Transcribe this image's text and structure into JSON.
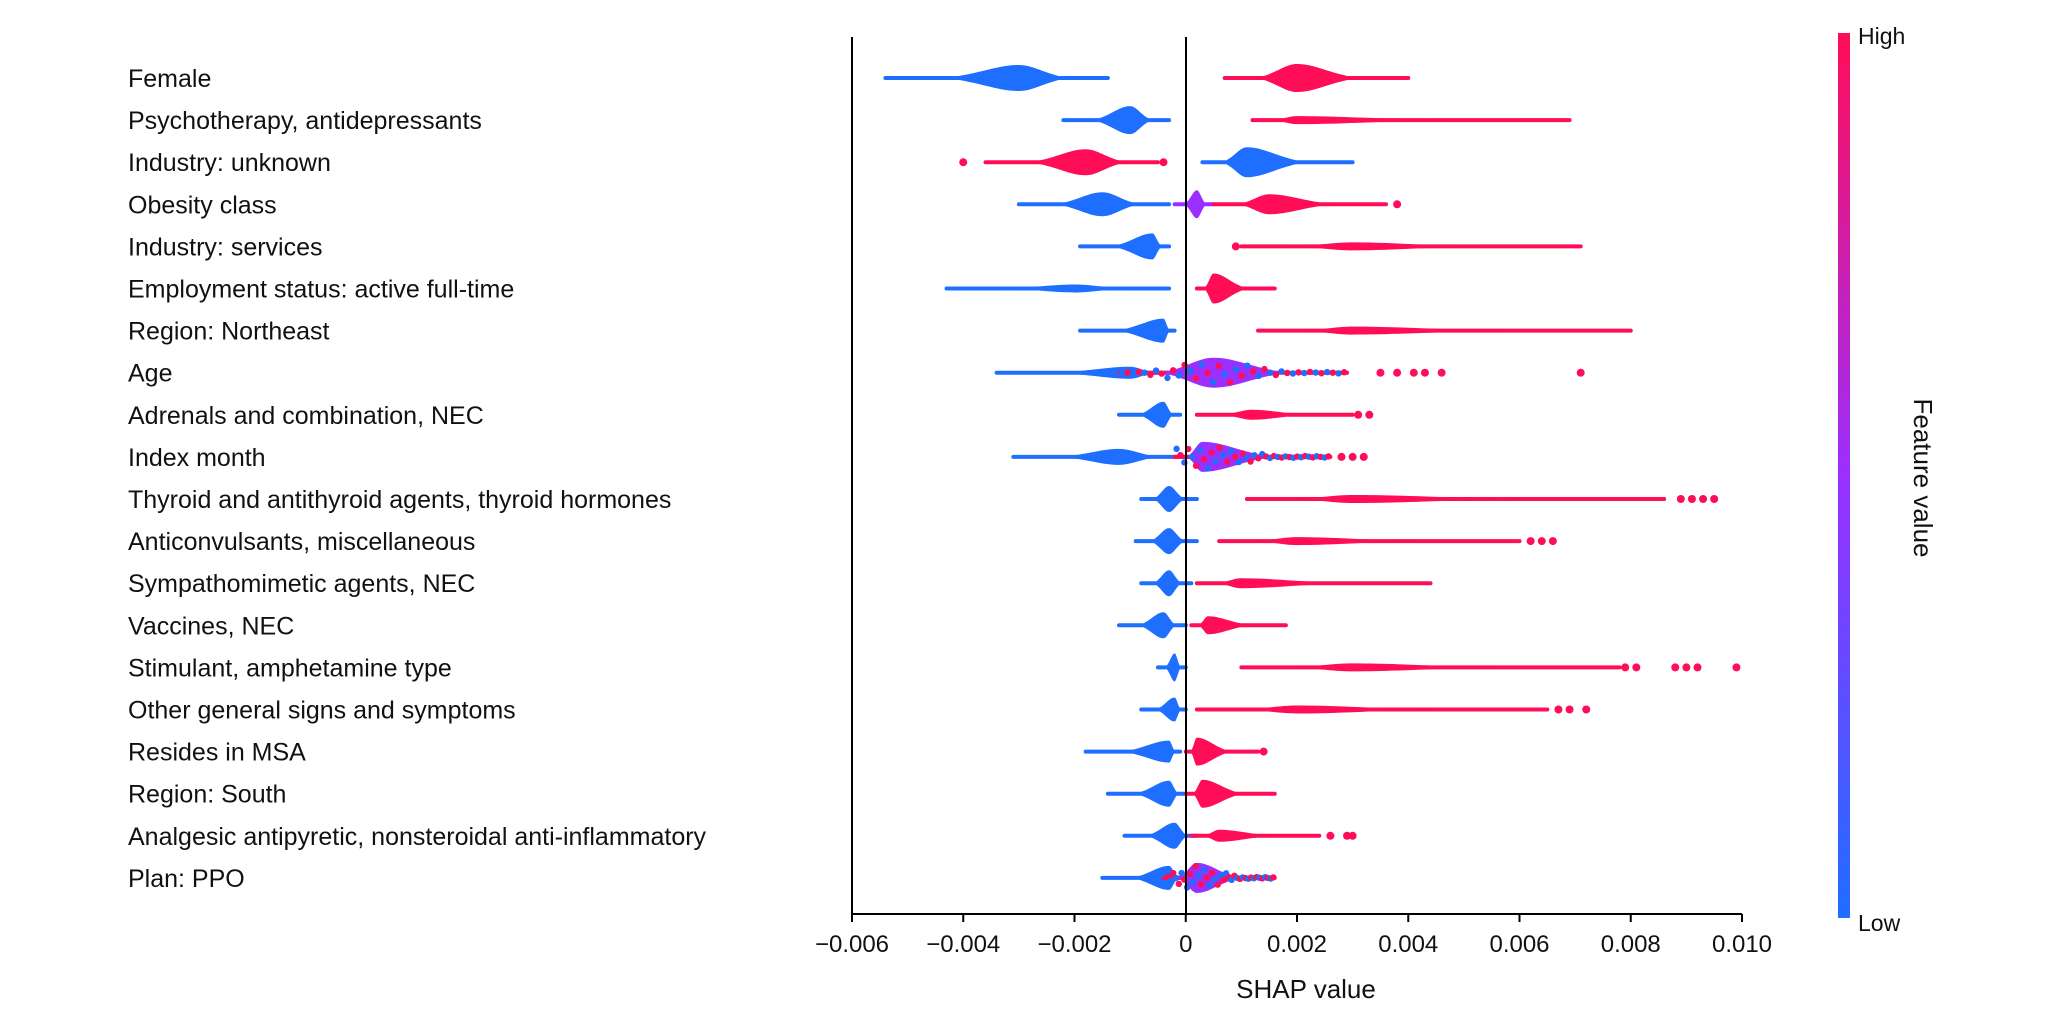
{
  "chart_data": {
    "type": "scatter",
    "subtype": "shap-beeswarm",
    "xlabel": "SHAP value",
    "xlim": [
      -0.006,
      0.01
    ],
    "xticks": [
      -0.006,
      -0.004,
      -0.002,
      0,
      0.002,
      0.004,
      0.006,
      0.008,
      0.01
    ],
    "xtick_labels": [
      "−0.006",
      "−0.004",
      "−0.002",
      "0",
      "0.002",
      "0.004",
      "0.006",
      "0.008",
      "0.010"
    ],
    "colorbar": {
      "title": "Feature value",
      "high_label": "High",
      "low_label": "Low",
      "low_color": "#1E6EFF",
      "mid_color": "#9B2FFF",
      "high_color": "#FF0D57"
    },
    "features": [
      {
        "name": "Female",
        "clusters": [
          {
            "c": "low",
            "min": -0.0054,
            "max": -0.0014,
            "center": -0.003,
            "w": 13
          },
          {
            "c": "high",
            "min": 0.0007,
            "max": 0.004,
            "center": 0.002,
            "w": 14
          }
        ]
      },
      {
        "name": "Psychotherapy, antidepressants",
        "clusters": [
          {
            "c": "low",
            "min": -0.0022,
            "max": -0.0003,
            "center": -0.001,
            "w": 14
          },
          {
            "c": "high",
            "min": 0.0012,
            "max": 0.0069,
            "center": 0.002,
            "w": 4
          }
        ]
      },
      {
        "name": "Industry: unknown",
        "clusters": [
          {
            "c": "high",
            "min": -0.0036,
            "max": -0.0005,
            "center": -0.0018,
            "w": 13,
            "outliers": [
              -0.004,
              -0.0004
            ]
          },
          {
            "c": "low",
            "min": 0.0003,
            "max": 0.003,
            "center": 0.0011,
            "w": 15
          }
        ]
      },
      {
        "name": "Obesity class",
        "clusters": [
          {
            "c": "low",
            "min": -0.003,
            "max": -0.0003,
            "center": -0.0015,
            "w": 12
          },
          {
            "c": "mid",
            "min": -0.0002,
            "max": 0.0005,
            "center": 0.0002,
            "w": 14
          },
          {
            "c": "high",
            "min": 0.0005,
            "max": 0.0036,
            "center": 0.0015,
            "w": 10,
            "outliers": [
              0.0038
            ]
          }
        ]
      },
      {
        "name": "Industry: services",
        "clusters": [
          {
            "c": "low",
            "min": -0.0019,
            "max": -0.0003,
            "center": -0.0006,
            "w": 13
          },
          {
            "c": "high",
            "min": 0.001,
            "max": 0.0071,
            "center": 0.003,
            "w": 4,
            "outliers": [
              0.0009
            ]
          }
        ]
      },
      {
        "name": "Employment status: active full-time",
        "clusters": [
          {
            "c": "low",
            "min": -0.0043,
            "max": -0.0003,
            "center": -0.002,
            "w": 4
          },
          {
            "c": "high",
            "min": 0.0002,
            "max": 0.0016,
            "center": 0.0005,
            "w": 15
          }
        ]
      },
      {
        "name": "Region: Northeast",
        "clusters": [
          {
            "c": "low",
            "min": -0.0019,
            "max": -0.0002,
            "center": -0.0004,
            "w": 12
          },
          {
            "c": "high",
            "min": 0.0013,
            "max": 0.008,
            "center": 0.003,
            "w": 4
          }
        ]
      },
      {
        "name": "Age",
        "clusters": [
          {
            "c": "low",
            "min": -0.0034,
            "max": -0.0002,
            "center": -0.001,
            "w": 6
          },
          {
            "c": "mixed",
            "min": -0.0012,
            "max": 0.0029,
            "center": 0.0005,
            "w": 15,
            "outliers": [
              0.0035,
              0.0038,
              0.0041,
              0.0043,
              0.0046,
              0.0071
            ]
          }
        ]
      },
      {
        "name": "Adrenals and combination, NEC",
        "clusters": [
          {
            "c": "low",
            "min": -0.0012,
            "max": -0.0001,
            "center": -0.0004,
            "w": 13
          },
          {
            "c": "high",
            "min": 0.0002,
            "max": 0.003,
            "center": 0.0012,
            "w": 5,
            "outliers": [
              0.0031,
              0.0033
            ]
          }
        ]
      },
      {
        "name": "Index month",
        "clusters": [
          {
            "c": "low",
            "min": -0.0031,
            "max": 0.0001,
            "center": -0.0012,
            "w": 8
          },
          {
            "c": "mixed",
            "min": -0.0002,
            "max": 0.0026,
            "center": 0.0003,
            "w": 15,
            "outliers": [
              0.0028,
              0.003,
              0.0032
            ]
          }
        ]
      },
      {
        "name": "Thyroid and antithyroid agents, thyroid hormones",
        "clusters": [
          {
            "c": "low",
            "min": -0.0008,
            "max": 0.0002,
            "center": -0.0003,
            "w": 13
          },
          {
            "c": "high",
            "min": 0.0011,
            "max": 0.0086,
            "center": 0.003,
            "w": 4,
            "outliers": [
              0.0089,
              0.0091,
              0.0093,
              0.0095
            ]
          }
        ]
      },
      {
        "name": "Anticonvulsants, miscellaneous",
        "clusters": [
          {
            "c": "low",
            "min": -0.0009,
            "max": 0.0002,
            "center": -0.0003,
            "w": 13
          },
          {
            "c": "high",
            "min": 0.0006,
            "max": 0.006,
            "center": 0.002,
            "w": 4,
            "outliers": [
              0.0062,
              0.0064,
              0.0066
            ]
          }
        ]
      },
      {
        "name": "Sympathomimetic agents, NEC",
        "clusters": [
          {
            "c": "low",
            "min": -0.0008,
            "max": 0.0001,
            "center": -0.0003,
            "w": 13
          },
          {
            "c": "high",
            "min": 0.0002,
            "max": 0.0044,
            "center": 0.001,
            "w": 5
          }
        ]
      },
      {
        "name": "Vaccines, NEC",
        "clusters": [
          {
            "c": "low",
            "min": -0.0012,
            "max": 0.0,
            "center": -0.0004,
            "w": 13
          },
          {
            "c": "high",
            "min": 0.0001,
            "max": 0.0018,
            "center": 0.0004,
            "w": 9
          }
        ]
      },
      {
        "name": "Stimulant, amphetamine type",
        "clusters": [
          {
            "c": "low",
            "min": -0.0005,
            "max": 0.0,
            "center": -0.0002,
            "w": 14
          },
          {
            "c": "high",
            "min": 0.001,
            "max": 0.0078,
            "center": 0.003,
            "w": 4,
            "outliers": [
              0.0079,
              0.0081,
              0.0088,
              0.009,
              0.0092,
              0.0099
            ]
          }
        ]
      },
      {
        "name": "Other general signs and symptoms",
        "clusters": [
          {
            "c": "low",
            "min": -0.0008,
            "max": 0.0,
            "center": -0.0002,
            "w": 12
          },
          {
            "c": "high",
            "min": 0.0002,
            "max": 0.0065,
            "center": 0.002,
            "w": 4,
            "outliers": [
              0.0067,
              0.0069,
              0.0072
            ]
          }
        ]
      },
      {
        "name": "Resides in MSA",
        "clusters": [
          {
            "c": "low",
            "min": -0.0018,
            "max": -0.0001,
            "center": -0.0003,
            "w": 11
          },
          {
            "c": "high",
            "min": 0.0,
            "max": 0.0013,
            "center": 0.0002,
            "w": 14,
            "outliers": [
              0.0014
            ]
          }
        ]
      },
      {
        "name": "Region: South",
        "clusters": [
          {
            "c": "low",
            "min": -0.0014,
            "max": 0.0,
            "center": -0.0003,
            "w": 13
          },
          {
            "c": "high",
            "min": 0.0,
            "max": 0.0016,
            "center": 0.0003,
            "w": 14
          }
        ]
      },
      {
        "name": "Analgesic antipyretic, nonsteroidal anti-inflammatory",
        "clusters": [
          {
            "c": "low",
            "min": -0.0011,
            "max": 0.0002,
            "center": -0.0002,
            "w": 13
          },
          {
            "c": "high",
            "min": 0.0001,
            "max": 0.0024,
            "center": 0.0006,
            "w": 6,
            "outliers": [
              0.0026,
              0.0029,
              0.003
            ]
          }
        ]
      },
      {
        "name": "Plan: PPO",
        "clusters": [
          {
            "c": "low",
            "min": -0.0015,
            "max": 0.0,
            "center": -0.0003,
            "w": 12
          },
          {
            "c": "mixed",
            "min": -0.0004,
            "max": 0.0016,
            "center": 0.0002,
            "w": 15
          }
        ]
      }
    ]
  }
}
